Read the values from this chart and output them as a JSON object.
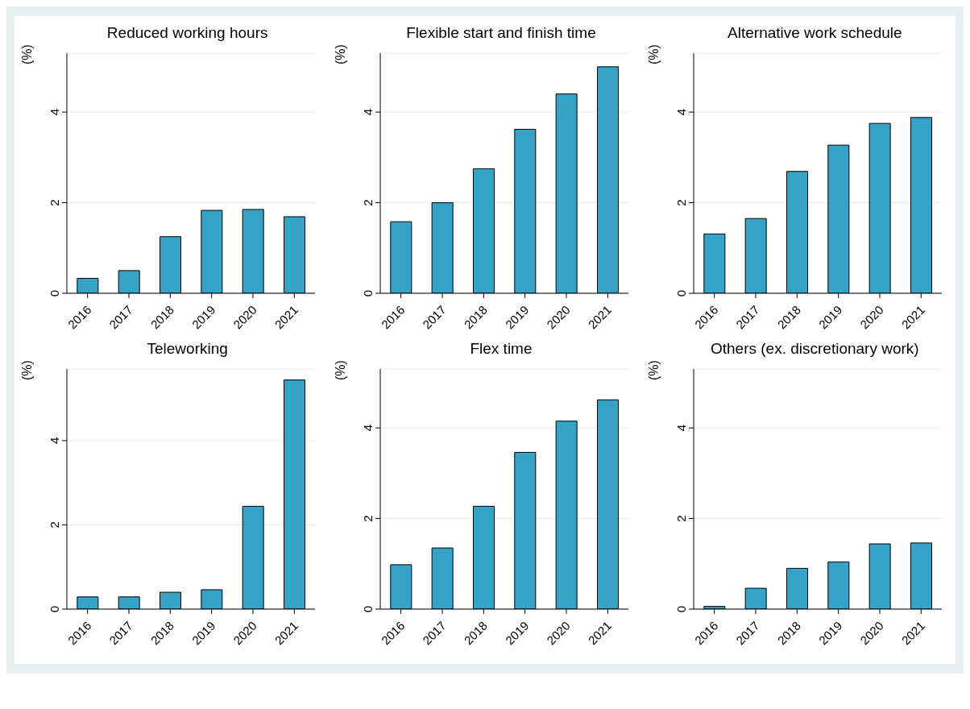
{
  "chart_data": [
    {
      "type": "bar",
      "title": "Reduced working hours",
      "ylabel": "(%)",
      "categories": [
        "2016",
        "2017",
        "2018",
        "2019",
        "2020",
        "2021"
      ],
      "values": [
        0.33,
        0.5,
        1.25,
        1.83,
        1.85,
        1.69
      ],
      "color": "#35a2c8",
      "ylim": [
        0,
        5.3
      ],
      "yticks": [
        0,
        2,
        4
      ],
      "grid": "y"
    },
    {
      "type": "bar",
      "title": "Flexible start and finish time",
      "ylabel": "(%)",
      "categories": [
        "2016",
        "2017",
        "2018",
        "2019",
        "2020",
        "2021"
      ],
      "values": [
        1.58,
        2.0,
        2.75,
        3.62,
        4.4,
        5.0
      ],
      "color": "#35a2c8",
      "ylim": [
        0,
        5.3
      ],
      "yticks": [
        0,
        2,
        4
      ],
      "grid": "y"
    },
    {
      "type": "bar",
      "title": "Alternative work schedule",
      "ylabel": "(%)",
      "categories": [
        "2016",
        "2017",
        "2018",
        "2019",
        "2020",
        "2021"
      ],
      "values": [
        1.31,
        1.65,
        2.69,
        3.27,
        3.75,
        3.88
      ],
      "color": "#35a2c8",
      "ylim": [
        0,
        5.3
      ],
      "yticks": [
        0,
        2,
        4
      ],
      "grid": "y"
    },
    {
      "type": "bar",
      "title": "Teleworking",
      "ylabel": "(%)",
      "categories": [
        "2016",
        "2017",
        "2018",
        "2019",
        "2020",
        "2021"
      ],
      "values": [
        0.29,
        0.29,
        0.4,
        0.46,
        2.44,
        5.44
      ],
      "color": "#35a2c8",
      "ylim": [
        0,
        5.7
      ],
      "yticks": [
        0,
        2,
        4
      ],
      "grid": "y"
    },
    {
      "type": "bar",
      "title": "Flex time",
      "ylabel": "(%)",
      "categories": [
        "2016",
        "2017",
        "2018",
        "2019",
        "2020",
        "2021"
      ],
      "values": [
        0.98,
        1.35,
        2.27,
        3.46,
        4.15,
        4.62
      ],
      "color": "#35a2c8",
      "ylim": [
        0,
        5.3
      ],
      "yticks": [
        0,
        2,
        4
      ],
      "grid": "y"
    },
    {
      "type": "bar",
      "title": "Others (ex. discretionary work)",
      "ylabel": "(%)",
      "categories": [
        "2016",
        "2017",
        "2018",
        "2019",
        "2020",
        "2021"
      ],
      "values": [
        0.06,
        0.46,
        0.9,
        1.04,
        1.44,
        1.46
      ],
      "color": "#35a2c8",
      "ylim": [
        0,
        5.3
      ],
      "yticks": [
        0,
        2,
        4
      ],
      "grid": "y"
    }
  ]
}
